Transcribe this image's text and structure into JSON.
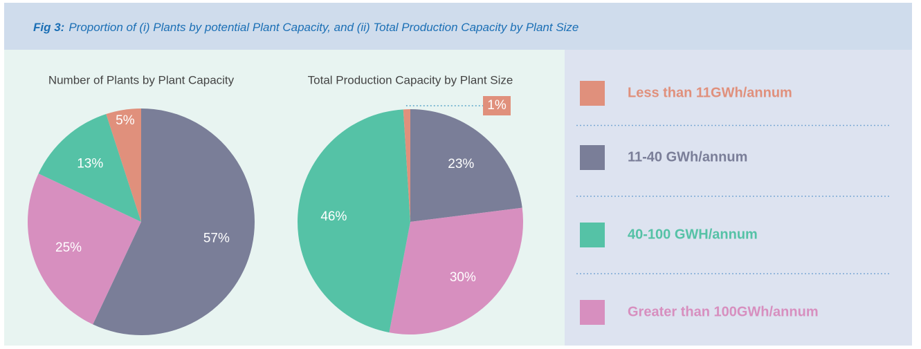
{
  "header": {
    "label": "Fig 3:",
    "title": "Proportion of (i) Plants by potential Plant Capacity, and (ii) Total Production Capacity by Plant Size"
  },
  "legend": {
    "labels": [
      "Less than 11GWh/annum",
      "11-40 GWh/annum",
      "40-100 GWH/annum",
      "Greater than 100GWh/annum"
    ],
    "colors": [
      "#e0907c",
      "#7a7e98",
      "#55c2a6",
      "#d78fbf"
    ]
  },
  "chart_data": [
    {
      "type": "pie",
      "title": "Number of Plants by Plant Capacity",
      "values": [
        57,
        25,
        13,
        5
      ],
      "value_labels": [
        "57%",
        "25%",
        "13%",
        "5%"
      ],
      "colors": [
        "#7a7e98",
        "#d78fbf",
        "#55c2a6",
        "#e0907c"
      ]
    },
    {
      "type": "pie",
      "title": "Total Production Capacity by Plant Size",
      "values": [
        23,
        30,
        46,
        1
      ],
      "value_labels": [
        "23%",
        "30%",
        "46%",
        "1%"
      ],
      "colors": [
        "#7a7e98",
        "#d78fbf",
        "#55c2a6",
        "#e0907c"
      ]
    }
  ]
}
